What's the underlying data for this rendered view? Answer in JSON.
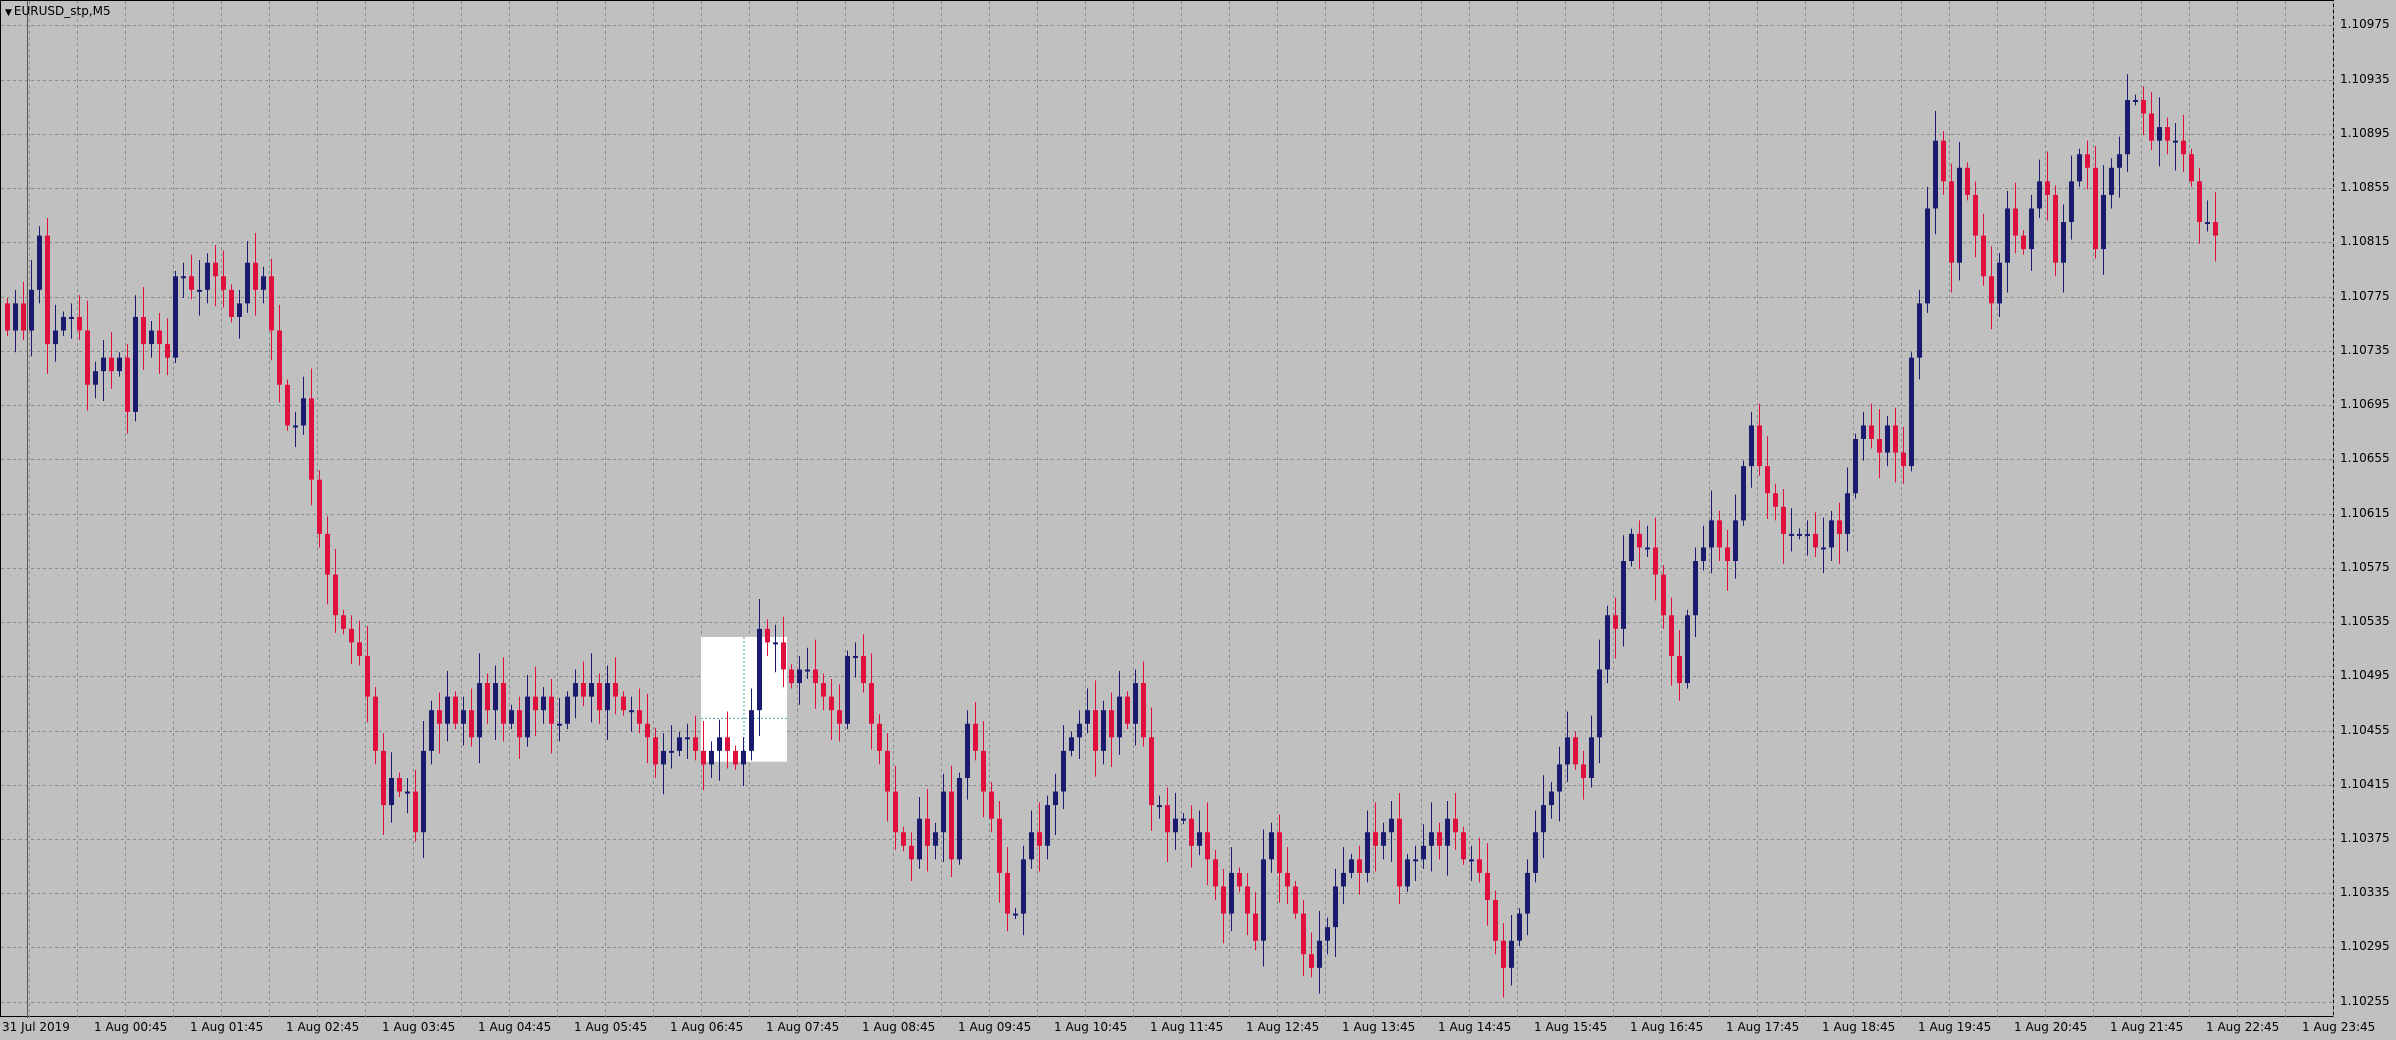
{
  "chart_title": "EURUSD_stp,M5",
  "colors": {
    "background": "#c0c0c0",
    "grid": "#8a8a8a",
    "bull": "#1a1a6e",
    "bear": "#e0103e",
    "axis_text": "#000000"
  },
  "price_axis": {
    "labels": [
      "1.10975",
      "1.10935",
      "1.10895",
      "1.10855",
      "1.10815",
      "1.10775",
      "1.10735",
      "1.10695",
      "1.10655",
      "1.10615",
      "1.10575",
      "1.10535",
      "1.10495",
      "1.10455",
      "1.10415",
      "1.10375",
      "1.10335",
      "1.10295",
      "1.10255"
    ]
  },
  "time_axis": {
    "labels": [
      "31 Jul 2019",
      "1 Aug 00:45",
      "1 Aug 01:45",
      "1 Aug 02:45",
      "1 Aug 03:45",
      "1 Aug 04:45",
      "1 Aug 05:45",
      "1 Aug 06:45",
      "1 Aug 07:45",
      "1 Aug 08:45",
      "1 Aug 09:45",
      "1 Aug 10:45",
      "1 Aug 11:45",
      "1 Aug 12:45",
      "1 Aug 13:45",
      "1 Aug 14:45",
      "1 Aug 15:45",
      "1 Aug 16:45",
      "1 Aug 17:45",
      "1 Aug 18:45",
      "1 Aug 19:45",
      "1 Aug 20:45",
      "1 Aug 21:45",
      "1 Aug 22:45",
      "1 Aug 23:45"
    ]
  },
  "chart_data": {
    "type": "candlestick",
    "symbol": "EURUSD_stp",
    "timeframe": "M5",
    "ylim": [
      1.10243,
      1.10993
    ],
    "grid": true,
    "close": [
      1.1075,
      1.1077,
      1.1075,
      1.1078,
      1.1082,
      1.1074,
      1.1075,
      1.1076,
      1.1076,
      1.1075,
      1.1071,
      1.1072,
      1.1073,
      1.1072,
      1.1073,
      1.1069,
      1.1076,
      1.1074,
      1.1075,
      1.1074,
      1.1073,
      1.1079,
      1.1079,
      1.1078,
      1.1078,
      1.108,
      1.1079,
      1.1078,
      1.1076,
      1.1077,
      1.108,
      1.1078,
      1.1079,
      1.1075,
      1.1071,
      1.1068,
      1.1068,
      1.107,
      1.1064,
      1.106,
      1.1057,
      1.1054,
      1.1053,
      1.1052,
      1.1051,
      1.1048,
      1.1044,
      1.104,
      1.1042,
      1.1041,
      1.1041,
      1.1038,
      1.1044,
      1.1047,
      1.1046,
      1.1048,
      1.1046,
      1.1047,
      1.1045,
      1.1049,
      1.1047,
      1.1049,
      1.1046,
      1.1047,
      1.1045,
      1.1048,
      1.1047,
      1.1048,
      1.1046,
      1.1046,
      1.1048,
      1.1049,
      1.1048,
      1.1049,
      1.1047,
      1.1049,
      1.1048,
      1.1047,
      1.1047,
      1.1046,
      1.1045,
      1.1043,
      1.1044,
      1.1044,
      1.1045,
      1.1045,
      1.1044,
      1.1043,
      1.1044,
      1.1045,
      1.1044,
      1.1043,
      1.1044,
      1.1047,
      1.1053,
      1.1052,
      1.1052,
      1.105,
      1.1049,
      1.105,
      1.105,
      1.1049,
      1.1048,
      1.1047,
      1.1046,
      1.1051,
      1.1051,
      1.1049,
      1.1046,
      1.1044,
      1.1041,
      1.1038,
      1.1037,
      1.1036,
      1.1039,
      1.1037,
      1.1038,
      1.1041,
      1.1036,
      1.1042,
      1.1046,
      1.1044,
      1.1041,
      1.1039,
      1.1035,
      1.1032,
      1.1032,
      1.1036,
      1.1038,
      1.1037,
      1.104,
      1.1041,
      1.1044,
      1.1045,
      1.1046,
      1.1047,
      1.1044,
      1.1047,
      1.1045,
      1.1048,
      1.1046,
      1.1049,
      1.1045,
      1.104,
      1.104,
      1.1038,
      1.1039,
      1.1039,
      1.1037,
      1.1038,
      1.1036,
      1.1034,
      1.1032,
      1.1035,
      1.1034,
      1.1032,
      1.103,
      1.1036,
      1.1038,
      1.1035,
      1.1034,
      1.1032,
      1.1029,
      1.1028,
      1.103,
      1.1031,
      1.1034,
      1.1035,
      1.1036,
      1.1035,
      1.1038,
      1.1037,
      1.1038,
      1.1039,
      1.1034,
      1.1036,
      1.1036,
      1.1037,
      1.1038,
      1.1037,
      1.1039,
      1.1038,
      1.1036,
      1.1036,
      1.1035,
      1.1033,
      1.103,
      1.1028,
      1.103,
      1.1032,
      1.1035,
      1.1038,
      1.104,
      1.1041,
      1.1043,
      1.1045,
      1.1043,
      1.1042,
      1.1045,
      1.105,
      1.1054,
      1.1053,
      1.1058,
      1.106,
      1.1059,
      1.1059,
      1.1057,
      1.1054,
      1.1051,
      1.1049,
      1.1054,
      1.1058,
      1.1059,
      1.1061,
      1.1059,
      1.1058,
      1.1061,
      1.1065,
      1.1068,
      1.1065,
      1.1063,
      1.1062,
      1.106,
      1.106,
      1.106,
      1.106,
      1.1059,
      1.1059,
      1.1061,
      1.106,
      1.1063,
      1.1067,
      1.1068,
      1.1067,
      1.1066,
      1.1068,
      1.1066,
      1.1065,
      1.1073,
      1.1077,
      1.1084,
      1.1089,
      1.1086,
      1.108,
      1.1087,
      1.1085,
      1.1082,
      1.1079,
      1.1077,
      1.108,
      1.1084,
      1.1082,
      1.1081,
      1.1084,
      1.1086,
      1.1085,
      1.108,
      1.1083,
      1.1086,
      1.1088,
      1.1087,
      1.1081,
      1.1085,
      1.1087,
      1.1088,
      1.1092,
      1.1092,
      1.1091,
      1.1089,
      1.109,
      1.1089,
      1.1089,
      1.1088,
      1.1086,
      1.1083,
      1.1083,
      1.1082
    ],
    "annotations": [
      "highlight rectangle 1 Aug 06:45–07:30 between 1.10432 and 1.10524"
    ]
  }
}
